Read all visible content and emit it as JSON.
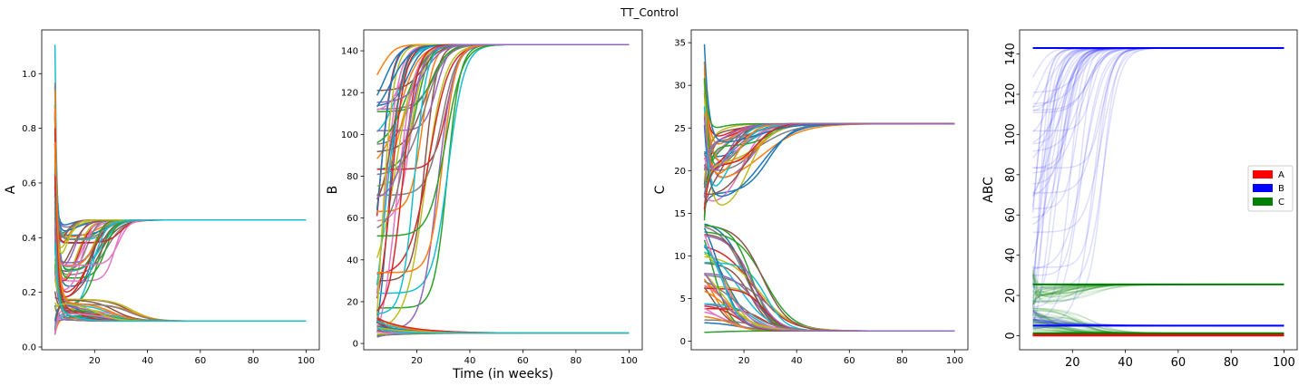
{
  "title": "TT_Control",
  "chart_data": [
    {
      "type": "line",
      "ylabel": "A",
      "xlabel": "",
      "xlim": [
        0,
        105
      ],
      "ylim": [
        -0.01,
        1.16
      ],
      "xticks": [
        20,
        40,
        60,
        80,
        100
      ],
      "yticks": [
        0.0,
        0.2,
        0.4,
        0.6,
        0.8,
        1.0
      ],
      "ytick_labels": [
        "0.0",
        "0.2",
        "0.4",
        "0.6",
        "0.8",
        "1.0"
      ],
      "x_start": 5,
      "x_end": 100,
      "groups": [
        {
          "name": "",
          "start_range": [
            0.3,
            1.13
          ],
          "steady": 0.465,
          "dip_to": [
            0.12,
            0.45
          ],
          "recover_week": [
            8,
            30
          ],
          "count": 40
        },
        {
          "name": "",
          "start_range": [
            0.04,
            0.95
          ],
          "steady": 0.095,
          "dip_to": [
            0.095,
            0.18
          ],
          "recover_week": [
            6,
            35
          ],
          "count": 40
        }
      ]
    },
    {
      "type": "line",
      "ylabel": "B",
      "xlabel": "Time (in weeks)",
      "xlim": [
        0,
        105
      ],
      "ylim": [
        -3,
        150
      ],
      "xticks": [
        20,
        40,
        60,
        80,
        100
      ],
      "yticks": [
        0,
        20,
        40,
        60,
        80,
        100,
        120,
        140
      ],
      "ytick_labels": [
        "0",
        "20",
        "40",
        "60",
        "80",
        "100",
        "120",
        "140"
      ],
      "x_start": 5,
      "x_end": 100,
      "groups": [
        {
          "name": "",
          "start_range": [
            3,
            140
          ],
          "steady": 143,
          "rise_week": [
            5,
            32
          ],
          "count": 45
        },
        {
          "name": "",
          "start_range": [
            3,
            14
          ],
          "steady": 5,
          "count": 25
        }
      ]
    },
    {
      "type": "line",
      "ylabel": "C",
      "xlabel": "",
      "xlim": [
        0,
        105
      ],
      "ylim": [
        -1,
        36.5
      ],
      "xticks": [
        20,
        40,
        60,
        80,
        100
      ],
      "yticks": [
        0,
        5,
        10,
        15,
        20,
        25,
        30,
        35
      ],
      "ytick_labels": [
        "0",
        "5",
        "10",
        "15",
        "20",
        "25",
        "30",
        "35"
      ],
      "x_start": 5,
      "x_end": 100,
      "groups": [
        {
          "name": "",
          "start_range": [
            14,
            35.5
          ],
          "steady": 25.5,
          "dip_to": [
            14,
            24
          ],
          "recover_week": [
            6,
            30
          ],
          "count": 35
        },
        {
          "name": "",
          "start_range": [
            0.7,
            14
          ],
          "steady": 1.2,
          "fall_week": [
            5,
            30
          ],
          "count": 40
        }
      ]
    },
    {
      "type": "line",
      "ylabel": "ABC",
      "xlabel": "",
      "xlim": [
        0,
        105
      ],
      "ylim": [
        -7,
        152
      ],
      "xticks": [
        20,
        40,
        60,
        80,
        100
      ],
      "yticks": [
        0,
        20,
        40,
        60,
        80,
        100,
        120,
        140
      ],
      "ytick_labels": [
        "0",
        "20",
        "40",
        "60",
        "80",
        "100",
        "120",
        "140"
      ],
      "legend_position": "right",
      "series": [
        {
          "name": "A",
          "color": "#ff0000",
          "steady": [
            0.465,
            0.095
          ]
        },
        {
          "name": "B",
          "color": "#0000ff",
          "steady": [
            143,
            5
          ]
        },
        {
          "name": "C",
          "color": "#008000",
          "steady": [
            25.5,
            1.2
          ]
        }
      ]
    }
  ],
  "palette": [
    "#1f77b4",
    "#ff7f0e",
    "#2ca02c",
    "#d62728",
    "#9467bd",
    "#8c564b",
    "#e377c2",
    "#7f7f7f",
    "#bcbd22",
    "#17becf"
  ]
}
